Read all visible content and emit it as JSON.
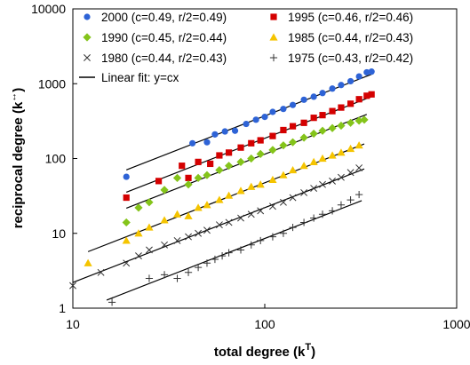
{
  "chart_data": {
    "type": "scatter",
    "xscale": "log",
    "yscale": "log",
    "xlim": [
      10,
      1000
    ],
    "ylim": [
      1,
      10000
    ],
    "xticks": [
      "10",
      "100",
      "1000"
    ],
    "yticks": [
      "1",
      "10",
      "100",
      "1000",
      "10000"
    ],
    "xlabel": "total degree (k",
    "xlabel_sup": "T",
    "xlabel_end": ")",
    "ylabel": "reciprocal degree (k",
    "ylabel_sup": "↔",
    "ylabel_end": ")",
    "grid": false,
    "legend_position": "top-right",
    "legend_fit_label": "Linear fit: y=cx",
    "series": [
      {
        "name": "2000 (c=0.49, r/2=0.49)",
        "marker": "circle",
        "color": "#2e63d6",
        "c": 0.49,
        "x_range": [
          19,
          360
        ],
        "points": [
          [
            19,
            57
          ],
          [
            42,
            160
          ],
          [
            50,
            165
          ],
          [
            55,
            210
          ],
          [
            62,
            230
          ],
          [
            70,
            235
          ],
          [
            80,
            290
          ],
          [
            90,
            330
          ],
          [
            100,
            360
          ],
          [
            110,
            420
          ],
          [
            125,
            460
          ],
          [
            140,
            520
          ],
          [
            160,
            610
          ],
          [
            180,
            670
          ],
          [
            200,
            750
          ],
          [
            225,
            860
          ],
          [
            250,
            960
          ],
          [
            280,
            1080
          ],
          [
            310,
            1250
          ],
          [
            340,
            1420
          ],
          [
            360,
            1450
          ]
        ]
      },
      {
        "name": "1995 (c=0.46, r/2=0.46)",
        "marker": "square",
        "color": "#d40000",
        "c": 0.46,
        "x_range": [
          19,
          360
        ],
        "points": [
          [
            19,
            30
          ],
          [
            28,
            50
          ],
          [
            37,
            80
          ],
          [
            40,
            55
          ],
          [
            45,
            90
          ],
          [
            52,
            85
          ],
          [
            58,
            110
          ],
          [
            65,
            120
          ],
          [
            75,
            140
          ],
          [
            85,
            160
          ],
          [
            95,
            175
          ],
          [
            110,
            200
          ],
          [
            125,
            240
          ],
          [
            140,
            270
          ],
          [
            160,
            300
          ],
          [
            180,
            350
          ],
          [
            200,
            380
          ],
          [
            225,
            430
          ],
          [
            250,
            480
          ],
          [
            280,
            540
          ],
          [
            310,
            620
          ],
          [
            340,
            690
          ],
          [
            360,
            720
          ]
        ]
      },
      {
        "name": "1990 (c=0.45, r/2=0.44)",
        "marker": "diamond",
        "color": "#84c41a",
        "c": 0.45,
        "x_range": [
          19,
          340
        ],
        "points": [
          [
            19,
            14
          ],
          [
            22,
            22
          ],
          [
            25,
            26
          ],
          [
            30,
            38
          ],
          [
            35,
            55
          ],
          [
            40,
            45
          ],
          [
            45,
            55
          ],
          [
            50,
            60
          ],
          [
            58,
            70
          ],
          [
            65,
            80
          ],
          [
            75,
            90
          ],
          [
            85,
            100
          ],
          [
            95,
            115
          ],
          [
            110,
            130
          ],
          [
            125,
            150
          ],
          [
            140,
            165
          ],
          [
            160,
            190
          ],
          [
            180,
            215
          ],
          [
            200,
            235
          ],
          [
            225,
            255
          ],
          [
            250,
            275
          ],
          [
            280,
            300
          ],
          [
            310,
            320
          ],
          [
            330,
            330
          ]
        ]
      },
      {
        "name": "1985 (c=0.44, r/2=0.43)",
        "marker": "triangle",
        "color": "#f5c400",
        "c": 0.44,
        "x_range": [
          12,
          330
        ],
        "points": [
          [
            12,
            4
          ],
          [
            19,
            8
          ],
          [
            22,
            10
          ],
          [
            25,
            12
          ],
          [
            30,
            15
          ],
          [
            35,
            18
          ],
          [
            40,
            17
          ],
          [
            45,
            22
          ],
          [
            50,
            24
          ],
          [
            58,
            28
          ],
          [
            65,
            32
          ],
          [
            75,
            37
          ],
          [
            85,
            42
          ],
          [
            95,
            45
          ],
          [
            110,
            52
          ],
          [
            125,
            60
          ],
          [
            140,
            70
          ],
          [
            160,
            80
          ],
          [
            180,
            90
          ],
          [
            200,
            100
          ],
          [
            225,
            110
          ],
          [
            250,
            120
          ],
          [
            280,
            135
          ],
          [
            310,
            150
          ]
        ]
      },
      {
        "name": "1980 (c=0.44, r/2=0.43)",
        "marker": "x",
        "color": "#333333",
        "c": 0.44,
        "x_range": [
          10,
          330
        ],
        "points": [
          [
            10,
            2
          ],
          [
            14,
            3
          ],
          [
            19,
            4
          ],
          [
            22,
            5
          ],
          [
            25,
            6
          ],
          [
            30,
            7
          ],
          [
            35,
            8
          ],
          [
            40,
            9
          ],
          [
            45,
            10
          ],
          [
            50,
            11
          ],
          [
            58,
            13
          ],
          [
            65,
            14
          ],
          [
            75,
            16
          ],
          [
            85,
            18
          ],
          [
            95,
            20
          ],
          [
            110,
            23
          ],
          [
            125,
            26
          ],
          [
            140,
            30
          ],
          [
            160,
            35
          ],
          [
            180,
            40
          ],
          [
            200,
            45
          ],
          [
            225,
            50
          ],
          [
            250,
            56
          ],
          [
            280,
            65
          ],
          [
            310,
            75
          ]
        ]
      },
      {
        "name": "1975 (c=0.43, r/2=0.42)",
        "marker": "plus",
        "color": "#333333",
        "c": 0.43,
        "x_range": [
          15,
          320
        ],
        "points": [
          [
            16,
            1.2
          ],
          [
            25,
            2.5
          ],
          [
            30,
            2.8
          ],
          [
            35,
            2.5
          ],
          [
            40,
            3
          ],
          [
            45,
            3.5
          ],
          [
            50,
            4
          ],
          [
            55,
            4.5
          ],
          [
            60,
            5
          ],
          [
            65,
            5.5
          ],
          [
            75,
            6
          ],
          [
            85,
            7
          ],
          [
            95,
            8
          ],
          [
            110,
            9
          ],
          [
            125,
            10
          ],
          [
            140,
            12
          ],
          [
            160,
            14
          ],
          [
            180,
            16
          ],
          [
            200,
            18
          ],
          [
            225,
            20
          ],
          [
            250,
            24
          ],
          [
            280,
            28
          ],
          [
            310,
            33
          ]
        ]
      }
    ]
  }
}
